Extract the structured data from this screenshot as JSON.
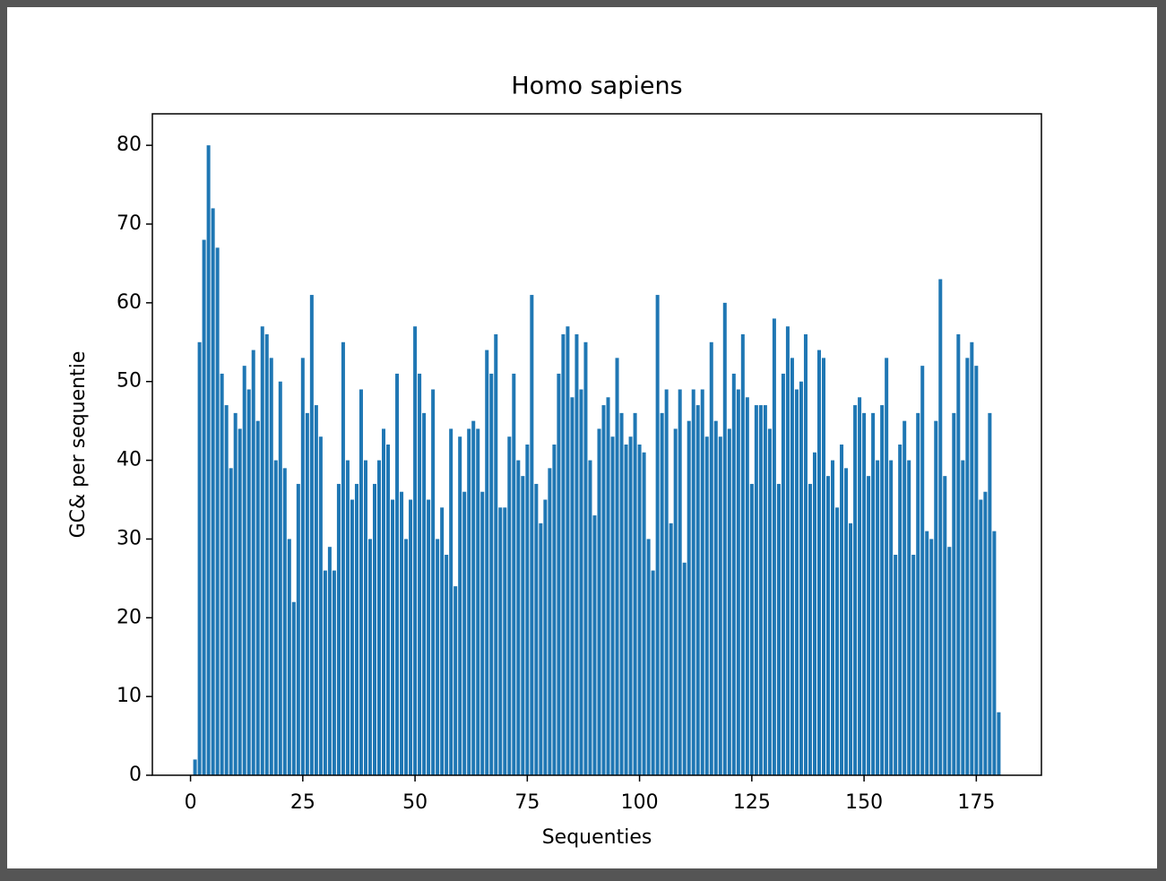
{
  "chart_data": {
    "type": "bar",
    "title": "Homo sapiens",
    "xlabel": "Sequenties",
    "ylabel": "GC& per sequentie",
    "x": [
      1,
      2,
      3,
      4,
      5,
      6,
      7,
      8,
      9,
      10,
      11,
      12,
      13,
      14,
      15,
      16,
      17,
      18,
      19,
      20,
      21,
      22,
      23,
      24,
      25,
      26,
      27,
      28,
      29,
      30,
      31,
      32,
      33,
      34,
      35,
      36,
      37,
      38,
      39,
      40,
      41,
      42,
      43,
      44,
      45,
      46,
      47,
      48,
      49,
      50,
      51,
      52,
      53,
      54,
      55,
      56,
      57,
      58,
      59,
      60,
      61,
      62,
      63,
      64,
      65,
      66,
      67,
      68,
      69,
      70,
      71,
      72,
      73,
      74,
      75,
      76,
      77,
      78,
      79,
      80,
      81,
      82,
      83,
      84,
      85,
      86,
      87,
      88,
      89,
      90,
      91,
      92,
      93,
      94,
      95,
      96,
      97,
      98,
      99,
      100,
      101,
      102,
      103,
      104,
      105,
      106,
      107,
      108,
      109,
      110,
      111,
      112,
      113,
      114,
      115,
      116,
      117,
      118,
      119,
      120,
      121,
      122,
      123,
      124,
      125,
      126,
      127,
      128,
      129,
      130,
      131,
      132,
      133,
      134,
      135,
      136,
      137,
      138,
      139,
      140,
      141,
      142,
      143,
      144,
      145,
      146,
      147,
      148,
      149,
      150,
      151,
      152,
      153,
      154,
      155,
      156,
      157,
      158,
      159,
      160,
      161,
      162,
      163,
      164,
      165,
      166,
      167,
      168,
      169,
      170,
      171,
      172,
      173,
      174,
      175,
      176,
      177,
      178,
      179,
      180
    ],
    "values": [
      2,
      55,
      68,
      80,
      72,
      67,
      51,
      47,
      39,
      46,
      44,
      52,
      49,
      54,
      45,
      57,
      56,
      53,
      40,
      50,
      39,
      30,
      22,
      37,
      53,
      46,
      61,
      47,
      43,
      26,
      29,
      26,
      37,
      55,
      40,
      35,
      37,
      49,
      40,
      30,
      37,
      40,
      44,
      42,
      35,
      51,
      36,
      30,
      35,
      57,
      51,
      46,
      35,
      49,
      30,
      34,
      28,
      44,
      24,
      43,
      36,
      44,
      45,
      44,
      36,
      54,
      51,
      56,
      34,
      34,
      43,
      51,
      40,
      38,
      42,
      61,
      37,
      32,
      35,
      39,
      42,
      51,
      56,
      57,
      48,
      56,
      49,
      55,
      40,
      33,
      44,
      47,
      48,
      43,
      53,
      46,
      42,
      43,
      46,
      42,
      41,
      30,
      26,
      61,
      46,
      49,
      32,
      44,
      49,
      27,
      45,
      49,
      47,
      49,
      43,
      55,
      45,
      43,
      60,
      44,
      51,
      49,
      56,
      48,
      37,
      47,
      47,
      47,
      44,
      58,
      37,
      51,
      57,
      53,
      49,
      50,
      56,
      37,
      41,
      54,
      53,
      38,
      40,
      34,
      42,
      39,
      32,
      47,
      48,
      46,
      38,
      46,
      40,
      47,
      53,
      40,
      28,
      42,
      45,
      40,
      28,
      46,
      52,
      31,
      30,
      45,
      63,
      38,
      29,
      46,
      56,
      40,
      53,
      55,
      52,
      35,
      36,
      46,
      31,
      8
    ],
    "color": "#1f77b4",
    "bar_width": 0.8,
    "xlim": [
      -8.5,
      189.5
    ],
    "xticks": [
      0,
      25,
      50,
      75,
      100,
      125,
      150,
      175
    ],
    "ylim": [
      0,
      84
    ],
    "yticks": [
      0,
      10,
      20,
      30,
      40,
      50,
      60,
      70,
      80
    ],
    "grid": false
  }
}
